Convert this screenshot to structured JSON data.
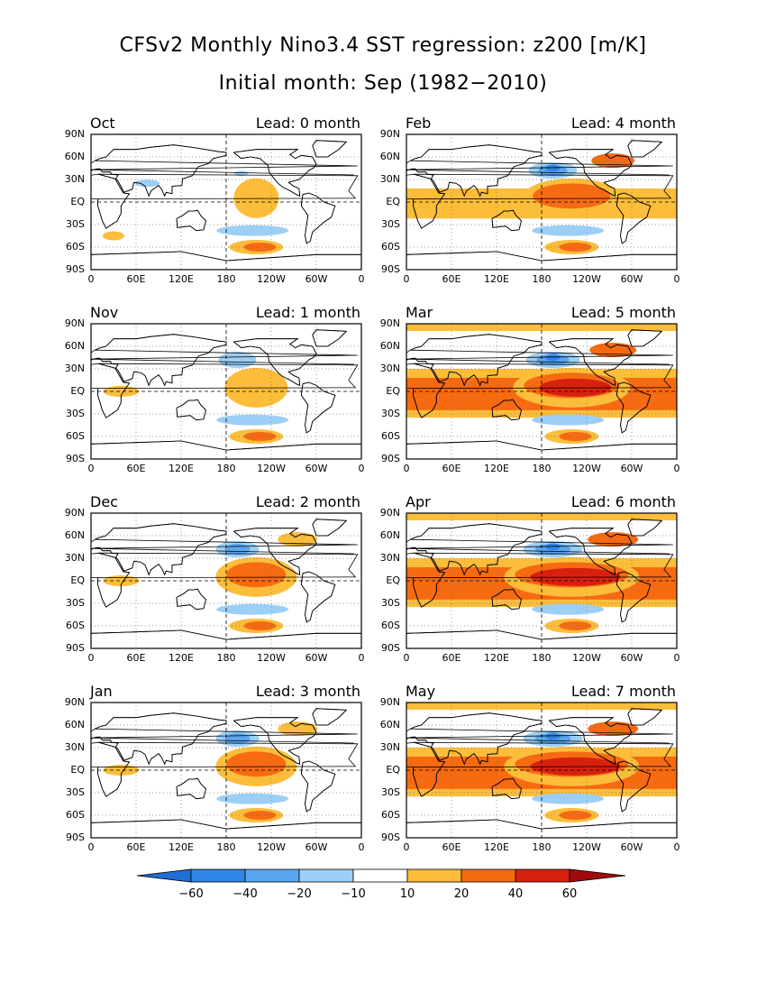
{
  "title_line1": "CFSv2 Monthly Nino3.4 SST regression: z200 [m/K]",
  "title_line2": "Initial month: Sep (1982−2010)",
  "lat_labels": [
    "90N",
    "60N",
    "30N",
    "EQ",
    "30S",
    "60S",
    "90S"
  ],
  "lon_labels": [
    "0",
    "60E",
    "120E",
    "180",
    "120W",
    "60W",
    "0"
  ],
  "colors": {
    "neg60": "#1e6fd6",
    "neg40": "#2f86e6",
    "neg20": "#5aa5ef",
    "neg10": "#9ccff6",
    "white": "#ffffff",
    "pos10": "#fbbd3a",
    "pos20": "#f66a12",
    "pos40": "#d8200e",
    "pos60": "#a00a0a"
  },
  "colorbar_labels": [
    "−60",
    "−40",
    "−20",
    "−10",
    "10",
    "20",
    "40",
    "60"
  ],
  "panels": [
    {
      "month": "Oct",
      "lead": "Lead: 0 month",
      "level": 0
    },
    {
      "month": "Feb",
      "lead": "Lead: 4 month",
      "level": 3
    },
    {
      "month": "Nov",
      "lead": "Lead: 1 month",
      "level": 1
    },
    {
      "month": "Mar",
      "lead": "Lead: 5 month",
      "level": 4
    },
    {
      "month": "Dec",
      "lead": "Lead: 2 month",
      "level": 2
    },
    {
      "month": "Apr",
      "lead": "Lead: 6 month",
      "level": 5
    },
    {
      "month": "Jan",
      "lead": "Lead: 3 month",
      "level": 2
    },
    {
      "month": "May",
      "lead": "Lead: 7 month",
      "level": 5
    }
  ]
}
